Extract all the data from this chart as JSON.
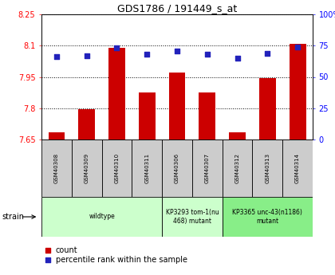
{
  "title": "GDS1786 / 191449_s_at",
  "samples": [
    "GSM40308",
    "GSM40309",
    "GSM40310",
    "GSM40311",
    "GSM40306",
    "GSM40307",
    "GSM40312",
    "GSM40313",
    "GSM40314"
  ],
  "count_values": [
    7.685,
    7.795,
    8.09,
    7.875,
    7.97,
    7.875,
    7.685,
    7.945,
    8.107
  ],
  "percentile_values": [
    66,
    67,
    73,
    68,
    71,
    68,
    65,
    69,
    74
  ],
  "ylim_left": [
    7.65,
    8.25
  ],
  "ylim_right": [
    0,
    100
  ],
  "yticks_left": [
    7.65,
    7.8,
    7.95,
    8.1,
    8.25
  ],
  "yticks_right": [
    0,
    25,
    50,
    75,
    100
  ],
  "ytick_labels_left": [
    "7.65",
    "7.8",
    "7.95",
    "8.1",
    "8.25"
  ],
  "ytick_labels_right": [
    "0",
    "25",
    "50",
    "75",
    "100%"
  ],
  "bar_color": "#cc0000",
  "dot_color": "#2222bb",
  "groups": [
    {
      "label": "wildtype",
      "start": 0,
      "end": 4,
      "color": "#ccffcc"
    },
    {
      "label": "KP3293 tom-1(nu\n468) mutant",
      "start": 4,
      "end": 6,
      "color": "#ccffcc"
    },
    {
      "label": "KP3365 unc-43(n1186)\nmutant",
      "start": 6,
      "end": 9,
      "color": "#88ee88"
    }
  ],
  "strain_label": "strain",
  "legend_count_label": "count",
  "legend_pct_label": "percentile rank within the sample"
}
